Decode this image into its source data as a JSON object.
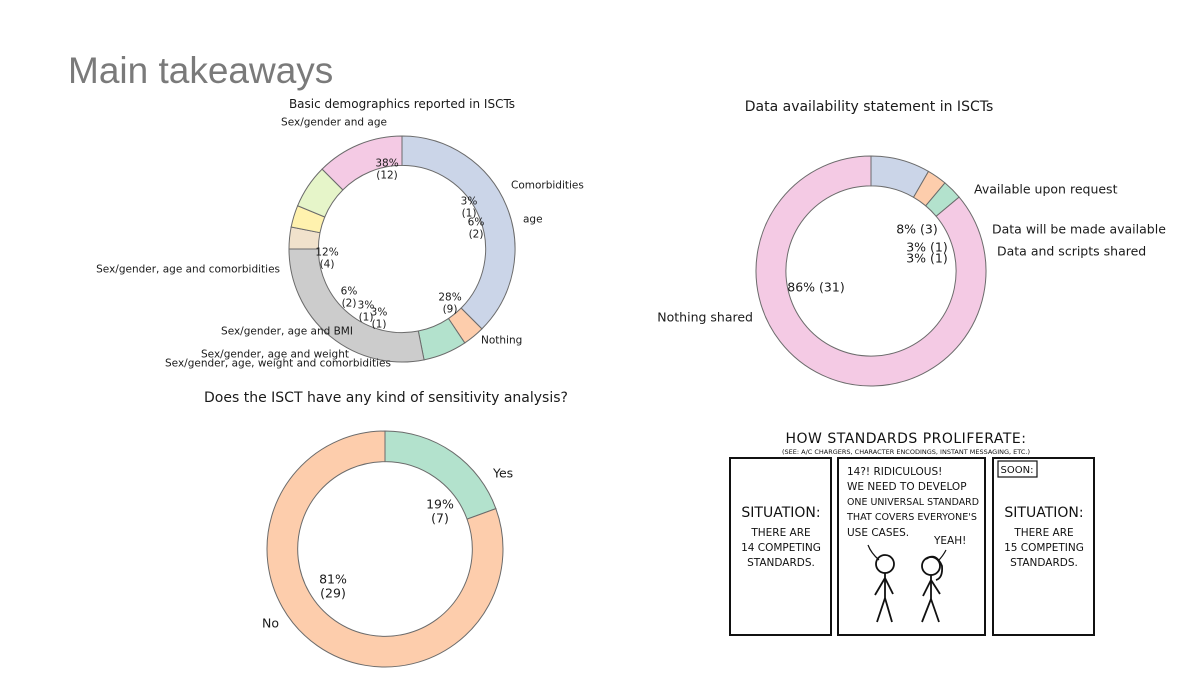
{
  "slide": {
    "title": "Main takeaways"
  },
  "chart_data": [
    {
      "type": "pie",
      "variant": "donut",
      "title": "Basic demographics reported in ISCTs",
      "categories": [
        "Sex/gender and age",
        "Comorbidities",
        "age",
        "Nothing",
        "Sex/gender, age, weight and comorbidities",
        "Sex/gender, age and weight",
        "Sex/gender, age and BMI",
        "Sex/gender, age and comorbidities"
      ],
      "values": [
        12,
        1,
        2,
        9,
        1,
        1,
        2,
        4
      ],
      "pct_labels": [
        "38%\n(12)",
        "3%\n(1)",
        "6%\n(2)",
        "28%\n(9)",
        "3%\n(1)",
        "3%\n(1)",
        "6%\n(2)",
        "12%\n(4)"
      ],
      "colors": [
        "#cbd5e8",
        "#fdcdac",
        "#b3e2cd",
        "#cccccc",
        "#f1e2cc",
        "#fff2ae",
        "#e6f5c9",
        "#f4cae4"
      ]
    },
    {
      "type": "pie",
      "variant": "donut",
      "title": "Data availability statement in ISCTs",
      "categories": [
        "Available upon request",
        "Data will be made available",
        "Data and scripts shared",
        "Nothing shared"
      ],
      "values": [
        3,
        1,
        1,
        31
      ],
      "pct_labels": [
        "8% (3)",
        "3% (1)",
        "3% (1)",
        "86% (31)"
      ],
      "colors": [
        "#cbd5e8",
        "#fdcdac",
        "#b3e2cd",
        "#f4cae4"
      ]
    },
    {
      "type": "pie",
      "variant": "donut",
      "title": "Does the ISCT have any kind of sensitivity analysis?",
      "categories": [
        "Yes",
        "No"
      ],
      "values": [
        7,
        29
      ],
      "pct_labels": [
        "19%\n(7)",
        "81%\n(29)"
      ],
      "colors": [
        "#b3e2cd",
        "#fdcdac"
      ]
    }
  ],
  "comic": {
    "title": "HOW STANDARDS PROLIFERATE:",
    "subtitle": "(SEE: A/C CHARGERS, CHARACTER ENCODINGS, INSTANT MESSAGING, ETC.)",
    "panel1": [
      "SITUATION:",
      "THERE ARE",
      "14 COMPETING",
      "STANDARDS."
    ],
    "panel2_speech": [
      "14?! RIDICULOUS!",
      "WE NEED TO DEVELOP",
      "ONE UNIVERSAL STANDARD",
      "THAT COVERS EVERYONE'S",
      "USE CASES."
    ],
    "panel2_reply": "YEAH!",
    "panel3_caption": "SOON:",
    "panel3": [
      "SITUATION:",
      "THERE ARE",
      "15 COMPETING",
      "STANDARDS."
    ]
  }
}
